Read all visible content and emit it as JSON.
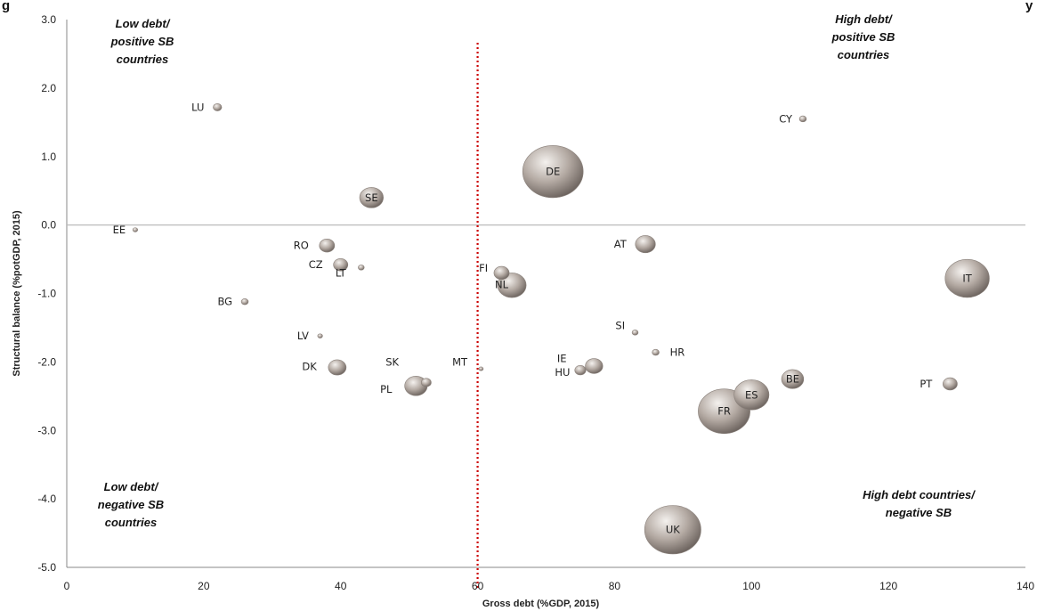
{
  "figure_title_fragment": "g",
  "corner_fragment": "y",
  "chart_data": {
    "type": "scatter",
    "bubble": true,
    "xlabel": "Gross debt (%GDP, 2015)",
    "ylabel": "Structural balance (%potGDP, 2015)",
    "xlim": [
      0,
      140
    ],
    "ylim": [
      -5.0,
      3.0
    ],
    "x_ticks": [
      0,
      20,
      40,
      60,
      80,
      100,
      120,
      140
    ],
    "y_ticks": [
      3.0,
      2.0,
      1.0,
      0.0,
      -1.0,
      -2.0,
      -3.0,
      -4.0,
      -5.0
    ],
    "y_tick_labels": [
      "3.0",
      "2.0",
      "1.0",
      "0.0",
      "-1.0",
      "-2.0",
      "-3.0",
      "-4.0",
      "-5.0"
    ],
    "grid": false,
    "reference_lines": {
      "horizontal_y": 0.0,
      "vertical_x": 60
    },
    "quadrant_labels": [
      {
        "lines": [
          "Low debt/",
          "positive SB",
          "countries"
        ],
        "position": "top-left"
      },
      {
        "lines": [
          "High debt/",
          "positive SB",
          "countries"
        ],
        "position": "top-right"
      },
      {
        "lines": [
          "Low debt/",
          "negative SB",
          "countries"
        ],
        "position": "bottom-left"
      },
      {
        "lines": [
          "High debt countries/",
          "negative SB"
        ],
        "position": "bottom-right"
      }
    ],
    "points": [
      {
        "label": "LU",
        "x": 22.0,
        "y": 1.72,
        "size": 0.6
      },
      {
        "label": "CY",
        "x": 107.5,
        "y": 1.55,
        "size": 0.4
      },
      {
        "label": "DE",
        "x": 71.0,
        "y": 0.78,
        "size": 30
      },
      {
        "label": "SE",
        "x": 44.5,
        "y": 0.4,
        "size": 4.6
      },
      {
        "label": "EE",
        "x": 10.0,
        "y": -0.07,
        "size": 0.2
      },
      {
        "label": "RO",
        "x": 38.0,
        "y": -0.3,
        "size": 1.9
      },
      {
        "label": "AT",
        "x": 84.5,
        "y": -0.28,
        "size": 3.3
      },
      {
        "label": "CZ",
        "x": 40.0,
        "y": -0.58,
        "size": 1.7
      },
      {
        "label": "LT",
        "x": 43.0,
        "y": -0.62,
        "size": 0.3
      },
      {
        "label": "FI",
        "x": 63.5,
        "y": -0.7,
        "size": 1.9
      },
      {
        "label": "NL",
        "x": 65.0,
        "y": -0.88,
        "size": 6.7
      },
      {
        "label": "IT",
        "x": 131.5,
        "y": -0.78,
        "size": 16
      },
      {
        "label": "BG",
        "x": 26.0,
        "y": -1.12,
        "size": 0.4
      },
      {
        "label": "SI",
        "x": 83.0,
        "y": -1.57,
        "size": 0.3
      },
      {
        "label": "LV",
        "x": 37.0,
        "y": -1.62,
        "size": 0.2
      },
      {
        "label": "HR",
        "x": 86.0,
        "y": -1.86,
        "size": 0.4
      },
      {
        "label": "DK",
        "x": 39.5,
        "y": -2.08,
        "size": 2.6
      },
      {
        "label": "SK",
        "x": 52.5,
        "y": -2.3,
        "size": 0.8
      },
      {
        "label": "MT",
        "x": 60.5,
        "y": -2.1,
        "size": 0.1
      },
      {
        "label": "IE",
        "x": 77.0,
        "y": -2.06,
        "size": 2.5
      },
      {
        "label": "HU",
        "x": 75.0,
        "y": -2.12,
        "size": 1.0
      },
      {
        "label": "PL",
        "x": 51.0,
        "y": -2.35,
        "size": 4.2
      },
      {
        "label": "BE",
        "x": 106.0,
        "y": -2.25,
        "size": 4.0
      },
      {
        "label": "PT",
        "x": 129.0,
        "y": -2.32,
        "size": 1.7
      },
      {
        "label": "ES",
        "x": 100.0,
        "y": -2.48,
        "size": 10
      },
      {
        "label": "FR",
        "x": 96.0,
        "y": -2.72,
        "size": 22
      },
      {
        "label": "UK",
        "x": 88.5,
        "y": -4.45,
        "size": 26
      }
    ],
    "colors": {
      "bubble": "#b3a9a2",
      "bubble_highlight": "#f4f1ee",
      "bubble_shadow": "#6e6560",
      "ref_vertical": "#cc0000",
      "axis": "#888888",
      "zero_line": "#bbbbbb"
    }
  }
}
